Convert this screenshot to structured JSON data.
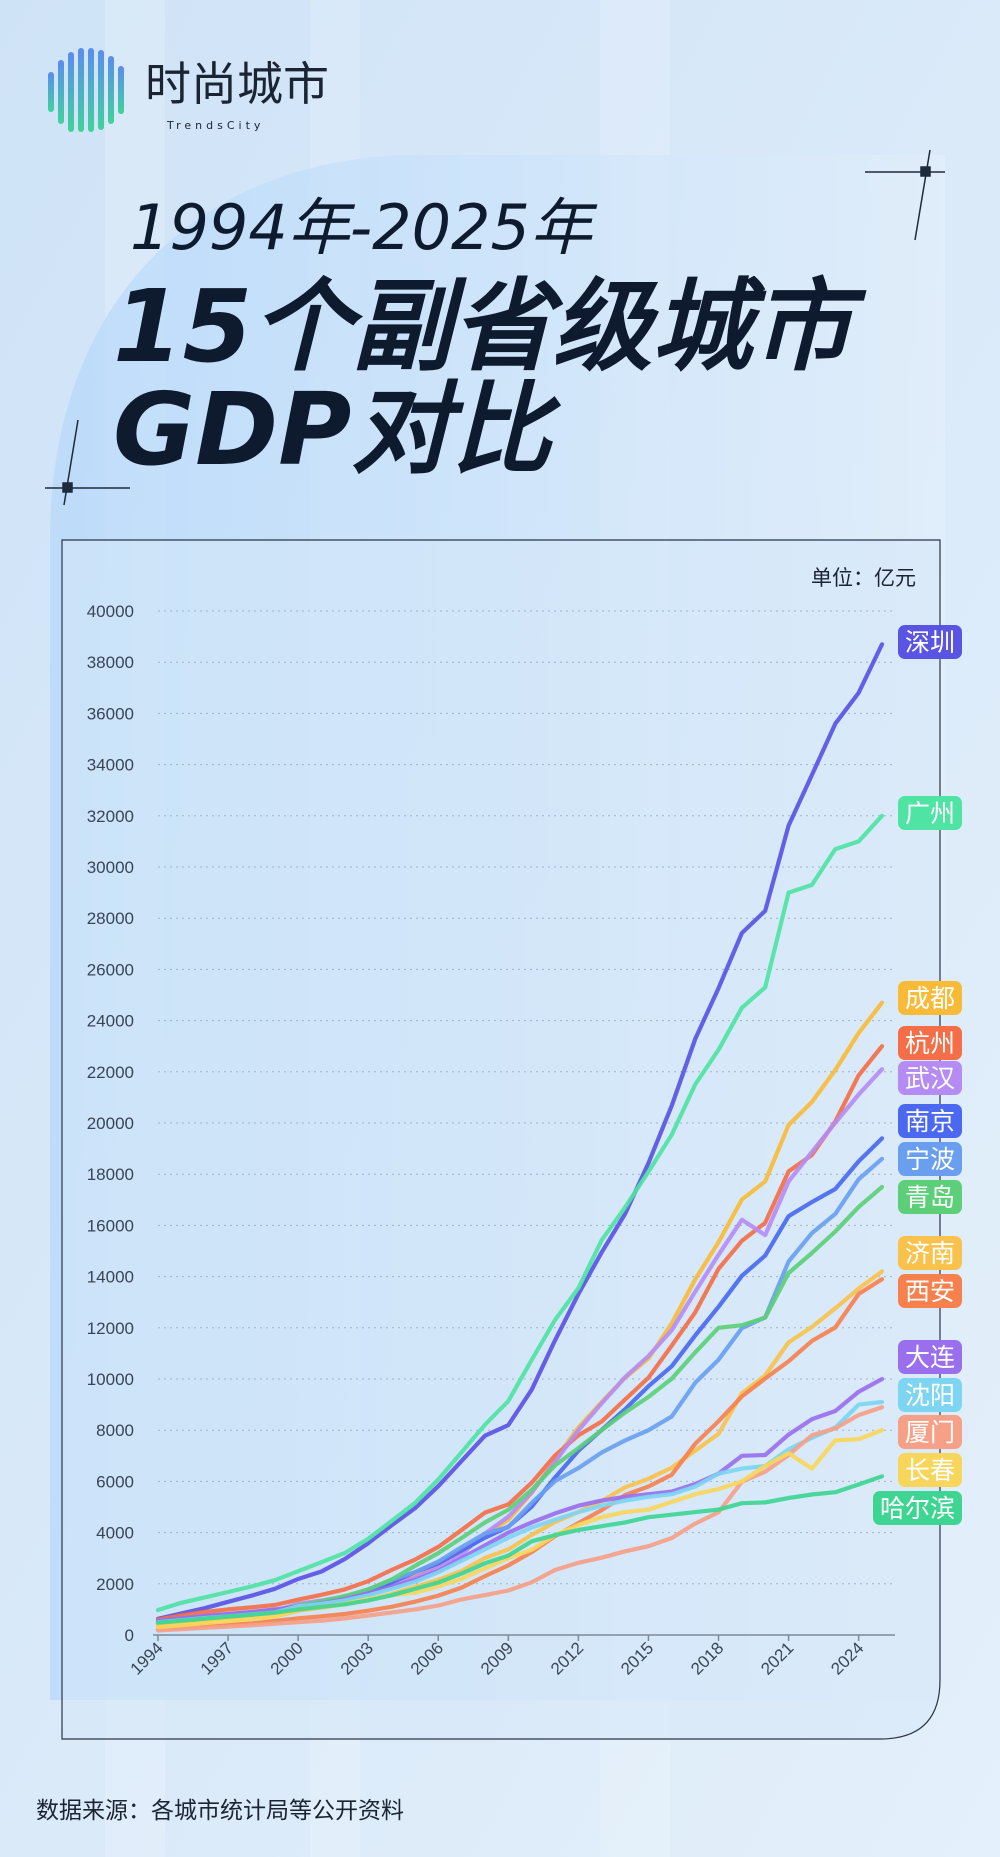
{
  "header": {
    "logo": "时尚城市",
    "logo_sub": "TrendsCity",
    "title_lines": [
      "1994年-2025年",
      "15个副省级城市",
      "GDP对比"
    ]
  },
  "chart_data": {
    "type": "line",
    "unit": "单位：亿元",
    "x": [
      1994,
      1995,
      1996,
      1997,
      1998,
      1999,
      2000,
      2001,
      2002,
      2003,
      2004,
      2005,
      2006,
      2007,
      2008,
      2009,
      2010,
      2011,
      2012,
      2013,
      2014,
      2015,
      2016,
      2017,
      2018,
      2019,
      2020,
      2021,
      2022,
      2023,
      2024,
      2025
    ],
    "xlim": [
      1994,
      2025
    ],
    "xticks": [
      1994,
      1997,
      2000,
      2003,
      2006,
      2009,
      2012,
      2015,
      2018,
      2021,
      2024
    ],
    "ylim": [
      0,
      40000
    ],
    "yticks": [
      0,
      2000,
      4000,
      6000,
      8000,
      10000,
      12000,
      14000,
      16000,
      18000,
      20000,
      22000,
      24000,
      26000,
      28000,
      30000,
      32000,
      34000,
      36000,
      38000,
      40000
    ],
    "grid": true,
    "series": [
      {
        "name": "深圳",
        "color": "#5a54e4",
        "values": [
          634,
          842,
          1048,
          1297,
          1534,
          1804,
          2187,
          2482,
          2969,
          3585,
          4282,
          4951,
          5814,
          6802,
          7787,
          8201,
          9582,
          11506,
          13320,
          14950,
          16448,
          18436,
          20685,
          23280,
          25266,
          27422,
          28289,
          31619,
          33593,
          35596,
          36802,
          38700
        ]
      },
      {
        "name": "广州",
        "color": "#4fe3a4",
        "values": [
          976,
          1259,
          1468,
          1679,
          1893,
          2139,
          2492,
          2842,
          3204,
          3758,
          4450,
          5154,
          6074,
          7140,
          8216,
          9138,
          10748,
          12303,
          13551,
          15420,
          16707,
          18100,
          19547,
          21503,
          22859,
          24500,
          25300,
          29000,
          29300,
          30700,
          31000,
          32000
        ]
      },
      {
        "name": "成都",
        "color": "#f9bb37",
        "values": [
          415,
          500,
          600,
          700,
          800,
          900,
          1000,
          1150,
          1300,
          1600,
          1900,
          2300,
          2750,
          3300,
          3900,
          4500,
          5550,
          6850,
          8100,
          9100,
          10050,
          10800,
          12170,
          13890,
          15340,
          17010,
          17720,
          19920,
          20820,
          22070,
          23510,
          24700
        ]
      },
      {
        "name": "杭州",
        "color": "#f46f48",
        "values": [
          600,
          760,
          900,
          1000,
          1080,
          1170,
          1380,
          1570,
          1780,
          2100,
          2540,
          2940,
          3440,
          4100,
          4780,
          5100,
          5950,
          7010,
          7800,
          8340,
          9200,
          10050,
          11310,
          12600,
          14300,
          15400,
          16100,
          18110,
          18750,
          20060,
          21860,
          23000
        ]
      },
      {
        "name": "武汉",
        "color": "#b58cf4",
        "values": [
          480,
          580,
          680,
          780,
          870,
          950,
          1210,
          1350,
          1500,
          1700,
          1960,
          2240,
          2650,
          3140,
          3960,
          4620,
          5570,
          6760,
          8000,
          9050,
          10070,
          10900,
          11910,
          13410,
          14850,
          16220,
          15620,
          17720,
          18870,
          20010,
          21110,
          22100
        ]
      },
      {
        "name": "南京",
        "color": "#4a69f0",
        "values": [
          530,
          620,
          710,
          800,
          880,
          980,
          1070,
          1220,
          1380,
          1660,
          2050,
          2450,
          2800,
          3300,
          3800,
          4230,
          5010,
          6150,
          7200,
          8010,
          8820,
          9720,
          10500,
          11700,
          12820,
          14030,
          14820,
          16360,
          16910,
          17420,
          18500,
          19400
        ]
      },
      {
        "name": "宁波",
        "color": "#6a9ff0",
        "values": [
          480,
          600,
          700,
          800,
          870,
          950,
          1140,
          1280,
          1450,
          1780,
          2150,
          2450,
          2870,
          3430,
          3960,
          4210,
          5160,
          6010,
          6520,
          7130,
          7600,
          8000,
          8540,
          9850,
          10750,
          11990,
          12410,
          14590,
          15700,
          16450,
          17800,
          18600
        ]
      },
      {
        "name": "青岛",
        "color": "#5ccf78",
        "values": [
          450,
          550,
          650,
          750,
          830,
          920,
          1150,
          1320,
          1520,
          1780,
          2160,
          2700,
          3200,
          3790,
          4400,
          4890,
          5670,
          6620,
          7300,
          8000,
          8690,
          9300,
          10010,
          11040,
          12000,
          12100,
          12400,
          14140,
          14920,
          15760,
          16720,
          17500
        ]
      },
      {
        "name": "济南",
        "color": "#f9c24c",
        "values": [
          350,
          420,
          500,
          570,
          640,
          720,
          950,
          1070,
          1200,
          1370,
          1600,
          1880,
          2160,
          2500,
          3010,
          3340,
          3910,
          4410,
          4810,
          5230,
          5770,
          6100,
          6540,
          7200,
          7860,
          9440,
          10140,
          11430,
          12030,
          12760,
          13530,
          14200
        ]
      },
      {
        "name": "西安",
        "color": "#f6814f",
        "values": [
          250,
          300,
          350,
          400,
          450,
          550,
          650,
          730,
          820,
          950,
          1100,
          1300,
          1540,
          1850,
          2300,
          2720,
          3240,
          3860,
          4370,
          4880,
          5470,
          5800,
          6260,
          7470,
          8350,
          9320,
          10020,
          10690,
          11490,
          12010,
          13320,
          13900
        ]
      },
      {
        "name": "大连",
        "color": "#9a6fee",
        "values": [
          550,
          650,
          750,
          820,
          900,
          1000,
          1110,
          1240,
          1400,
          1630,
          1880,
          2150,
          2500,
          3000,
          3500,
          4000,
          4400,
          4750,
          5050,
          5250,
          5400,
          5500,
          5600,
          5900,
          6300,
          7000,
          7030,
          7830,
          8430,
          8750,
          9500,
          10000
        ]
      },
      {
        "name": "沈阳",
        "color": "#7dd5f2",
        "values": [
          500,
          580,
          660,
          730,
          800,
          880,
          1120,
          1220,
          1350,
          1550,
          1800,
          2080,
          2450,
          2900,
          3350,
          3800,
          4200,
          4500,
          4800,
          5050,
          5250,
          5400,
          5500,
          5800,
          6300,
          6500,
          6600,
          7250,
          7700,
          8100,
          9000,
          9100
        ]
      },
      {
        "name": "厦门",
        "color": "#f6a088",
        "values": [
          180,
          230,
          280,
          330,
          380,
          440,
          500,
          560,
          650,
          760,
          880,
          1000,
          1150,
          1390,
          1560,
          1740,
          2060,
          2540,
          2820,
          3020,
          3270,
          3470,
          3790,
          4350,
          4790,
          5990,
          6380,
          7030,
          7800,
          8070,
          8590,
          8900
        ]
      },
      {
        "name": "长春",
        "color": "#f8d65c",
        "values": [
          300,
          380,
          460,
          540,
          620,
          720,
          1000,
          1100,
          1220,
          1400,
          1560,
          1650,
          1900,
          2200,
          2600,
          3000,
          3330,
          3900,
          4300,
          4600,
          4800,
          4900,
          5200,
          5500,
          5700,
          6000,
          6600,
          7100,
          6500,
          7600,
          7650,
          8000
        ]
      },
      {
        "name": "哈尔滨",
        "color": "#3ed592",
        "values": [
          480,
          560,
          640,
          720,
          790,
          870,
          1000,
          1100,
          1200,
          1350,
          1550,
          1800,
          2050,
          2400,
          2800,
          3100,
          3660,
          3900,
          4100,
          4250,
          4400,
          4600,
          4700,
          4800,
          4900,
          5150,
          5180,
          5350,
          5490,
          5580,
          5880,
          6200
        ]
      }
    ]
  },
  "source": "数据来源：各城市统计局等公开资料"
}
